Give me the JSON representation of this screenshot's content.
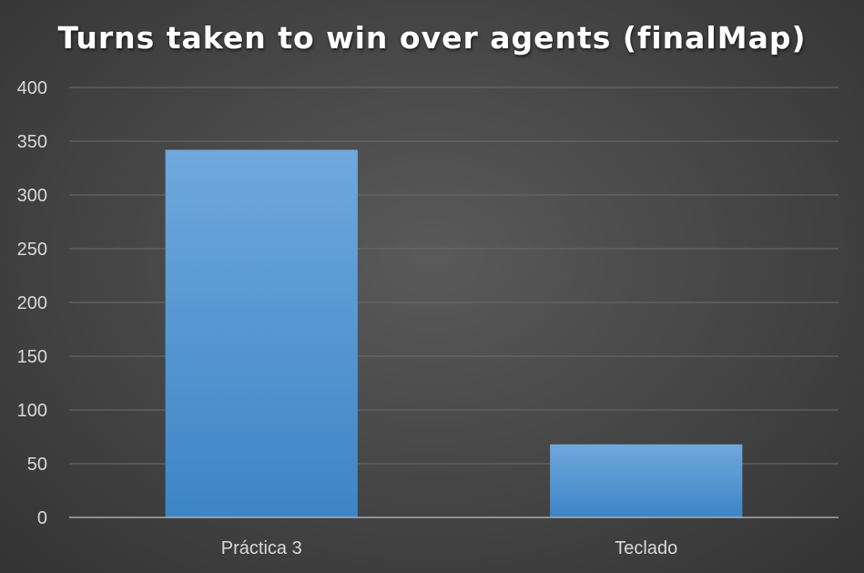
{
  "chart_data": {
    "type": "bar",
    "title": "Turns taken to win over agents (finalMap)",
    "categories": [
      "Práctica 3",
      "Teclado"
    ],
    "values": [
      342,
      68
    ],
    "xlabel": "",
    "ylabel": "",
    "ylim": [
      0,
      400
    ],
    "yticks": [
      0,
      50,
      100,
      150,
      200,
      250,
      300,
      350,
      400
    ],
    "grid": true,
    "legend": "none",
    "colors": {
      "bar_top": "#6fa8dc",
      "bar_bottom": "#3d85c6",
      "background": "#4a4a4a",
      "text": "#d9d9d9",
      "title": "#ffffff"
    }
  }
}
